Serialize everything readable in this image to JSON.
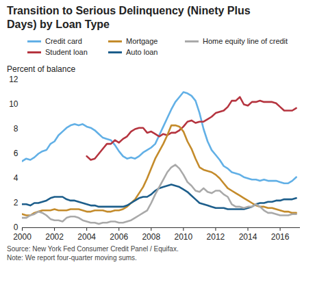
{
  "chart_data": {
    "type": "line",
    "title": "Transition to Serious Delinquency (Ninety Plus Days) by Loan Type",
    "y_label": "Percent of balance",
    "source": "Source:  New York Fed Consumer Credit Panel / Equifax.",
    "note": "Note: We report four-quarter moving sums.",
    "legend": "top",
    "grid": false,
    "xlim": [
      2000,
      2017.25
    ],
    "xticks": [
      2000,
      2002,
      2004,
      2006,
      2008,
      2010,
      2012,
      2014,
      2016
    ],
    "ylim": [
      0,
      12
    ],
    "yticks": [
      0,
      2,
      4,
      6,
      8,
      10,
      12
    ],
    "x": [
      2000,
      2000.25,
      2000.5,
      2000.75,
      2001,
      2001.25,
      2001.5,
      2001.75,
      2002,
      2002.25,
      2002.5,
      2002.75,
      2003,
      2003.25,
      2003.5,
      2003.75,
      2004,
      2004.25,
      2004.5,
      2004.75,
      2005,
      2005.25,
      2005.5,
      2005.75,
      2006,
      2006.25,
      2006.5,
      2006.75,
      2007,
      2007.25,
      2007.5,
      2007.75,
      2008,
      2008.25,
      2008.5,
      2008.75,
      2009,
      2009.25,
      2009.5,
      2009.75,
      2010,
      2010.25,
      2010.5,
      2010.75,
      2011,
      2011.25,
      2011.5,
      2011.75,
      2012,
      2012.25,
      2012.5,
      2012.75,
      2013,
      2013.25,
      2013.5,
      2013.75,
      2014,
      2014.25,
      2014.5,
      2014.75,
      2015,
      2015.25,
      2015.5,
      2015.75,
      2016,
      2016.25,
      2016.5,
      2016.75,
      2017
    ],
    "series": [
      {
        "name": "Credit card",
        "color": "#62b0e6",
        "values": [
          5.4,
          5.6,
          5.5,
          5.7,
          6.0,
          6.2,
          6.3,
          6.8,
          7.0,
          7.5,
          7.8,
          8.1,
          8.3,
          8.4,
          8.3,
          8.4,
          8.2,
          8.1,
          7.9,
          7.6,
          7.3,
          7.2,
          7.1,
          6.7,
          6.2,
          5.8,
          5.6,
          5.7,
          5.6,
          5.8,
          6.1,
          6.3,
          6.5,
          6.8,
          7.5,
          8.2,
          8.9,
          9.6,
          10.2,
          10.6,
          11.0,
          10.9,
          10.7,
          10.3,
          9.3,
          8.0,
          7.0,
          6.3,
          5.9,
          5.5,
          5.0,
          4.8,
          4.5,
          4.4,
          4.3,
          4.1,
          4.0,
          3.9,
          3.9,
          3.8,
          3.9,
          3.8,
          3.8,
          3.8,
          3.7,
          3.6,
          3.6,
          3.8,
          4.1
        ]
      },
      {
        "name": "Student loan",
        "color": "#b5343f",
        "values": [
          null,
          null,
          null,
          null,
          null,
          null,
          null,
          null,
          null,
          null,
          null,
          null,
          null,
          null,
          null,
          null,
          5.8,
          5.5,
          5.6,
          6.0,
          6.4,
          6.8,
          6.8,
          7.1,
          6.9,
          7.2,
          7.4,
          7.8,
          8.0,
          8.1,
          8.1,
          7.7,
          7.8,
          7.6,
          7.4,
          7.6,
          7.5,
          7.7,
          7.7,
          7.9,
          8.2,
          8.6,
          8.7,
          8.5,
          8.6,
          8.6,
          8.8,
          9.0,
          9.3,
          9.4,
          9.5,
          9.8,
          10.3,
          10.3,
          10.6,
          10.0,
          9.9,
          10.2,
          10.2,
          10.3,
          10.2,
          10.2,
          10.2,
          10.1,
          9.8,
          9.5,
          9.5,
          9.5,
          9.7
        ]
      },
      {
        "name": "Mortgage",
        "color": "#c48b2b",
        "values": [
          1.1,
          1.0,
          1.0,
          1.2,
          1.3,
          1.4,
          1.4,
          1.4,
          1.5,
          1.4,
          1.4,
          1.4,
          1.5,
          1.5,
          1.5,
          1.4,
          1.3,
          1.3,
          1.4,
          1.4,
          1.4,
          1.3,
          1.3,
          1.4,
          1.4,
          1.5,
          1.7,
          2.0,
          2.3,
          2.8,
          3.3,
          4.0,
          4.8,
          5.6,
          6.2,
          6.8,
          7.5,
          8.3,
          8.3,
          8.2,
          7.8,
          7.0,
          6.4,
          5.6,
          4.9,
          4.7,
          4.6,
          4.5,
          4.3,
          4.0,
          3.6,
          3.2,
          3.0,
          2.8,
          2.6,
          2.4,
          2.2,
          2.0,
          1.8,
          1.7,
          1.7,
          1.6,
          1.6,
          1.5,
          1.4,
          1.3,
          1.3,
          1.2,
          1.2
        ]
      },
      {
        "name": "Auto loan",
        "color": "#1d5e8b",
        "values": [
          1.9,
          1.9,
          1.8,
          2.0,
          2.0,
          2.1,
          2.2,
          2.4,
          2.5,
          2.5,
          2.5,
          2.3,
          2.2,
          2.2,
          2.1,
          2.0,
          1.9,
          1.8,
          1.8,
          1.7,
          1.7,
          1.7,
          1.7,
          1.7,
          1.7,
          1.7,
          1.8,
          2.0,
          2.2,
          2.4,
          2.5,
          2.5,
          2.7,
          3.0,
          3.2,
          3.3,
          3.4,
          3.5,
          3.4,
          3.3,
          3.1,
          2.9,
          2.6,
          2.3,
          2.0,
          1.9,
          1.8,
          1.7,
          1.6,
          1.6,
          1.6,
          1.5,
          1.5,
          1.5,
          1.5,
          1.5,
          1.6,
          1.7,
          1.9,
          2.0,
          2.0,
          2.1,
          2.1,
          2.2,
          2.2,
          2.3,
          2.3,
          2.3,
          2.4
        ]
      },
      {
        "name": "Home equity line of credit",
        "color": "#a9a9a9",
        "values": [
          0.8,
          0.8,
          1.0,
          1.1,
          1.3,
          1.2,
          1.0,
          0.7,
          0.6,
          0.6,
          0.5,
          0.8,
          0.9,
          0.9,
          0.8,
          0.6,
          0.5,
          0.4,
          0.4,
          0.3,
          0.4,
          0.4,
          0.5,
          0.5,
          0.4,
          0.4,
          0.5,
          0.6,
          0.8,
          1.0,
          1.2,
          1.4,
          2.0,
          2.7,
          3.3,
          3.9,
          4.5,
          4.9,
          5.1,
          4.8,
          4.3,
          3.7,
          3.4,
          3.0,
          2.9,
          3.2,
          2.9,
          2.8,
          3.0,
          3.0,
          2.7,
          2.5,
          1.9,
          1.7,
          1.7,
          1.6,
          1.7,
          1.7,
          1.9,
          1.7,
          1.4,
          1.2,
          1.2,
          1.1,
          1.0,
          1.0,
          1.0,
          1.1,
          1.1
        ]
      }
    ]
  }
}
